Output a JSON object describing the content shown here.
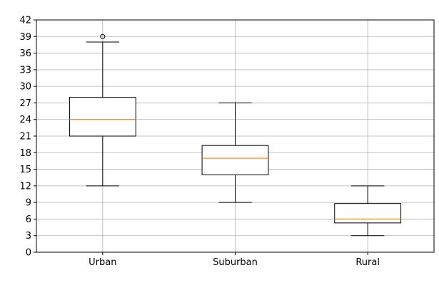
{
  "chart_data": {
    "type": "box",
    "title": "",
    "xlabel": "",
    "ylabel": "",
    "ylim": [
      0,
      42
    ],
    "yticks": [
      0,
      3,
      6,
      9,
      12,
      15,
      18,
      21,
      24,
      27,
      30,
      33,
      36,
      39,
      42
    ],
    "grid": true,
    "categories": [
      "Urban",
      "Suburban",
      "Rural"
    ],
    "boxes": [
      {
        "category": "Urban",
        "whisker_low": 12,
        "q1": 21,
        "median": 24,
        "q3": 28,
        "whisker_high": 38,
        "outliers": [
          39
        ]
      },
      {
        "category": "Suburban",
        "whisker_low": 9,
        "q1": 14,
        "median": 17,
        "q3": 19.3,
        "whisker_high": 27,
        "outliers": []
      },
      {
        "category": "Rural",
        "whisker_low": 3,
        "q1": 5.3,
        "median": 6,
        "q3": 8.8,
        "whisker_high": 12,
        "outliers": []
      }
    ],
    "colors": {
      "box": "#000000",
      "median": "#ff7f0e",
      "grid": "#b0b0b0"
    }
  }
}
